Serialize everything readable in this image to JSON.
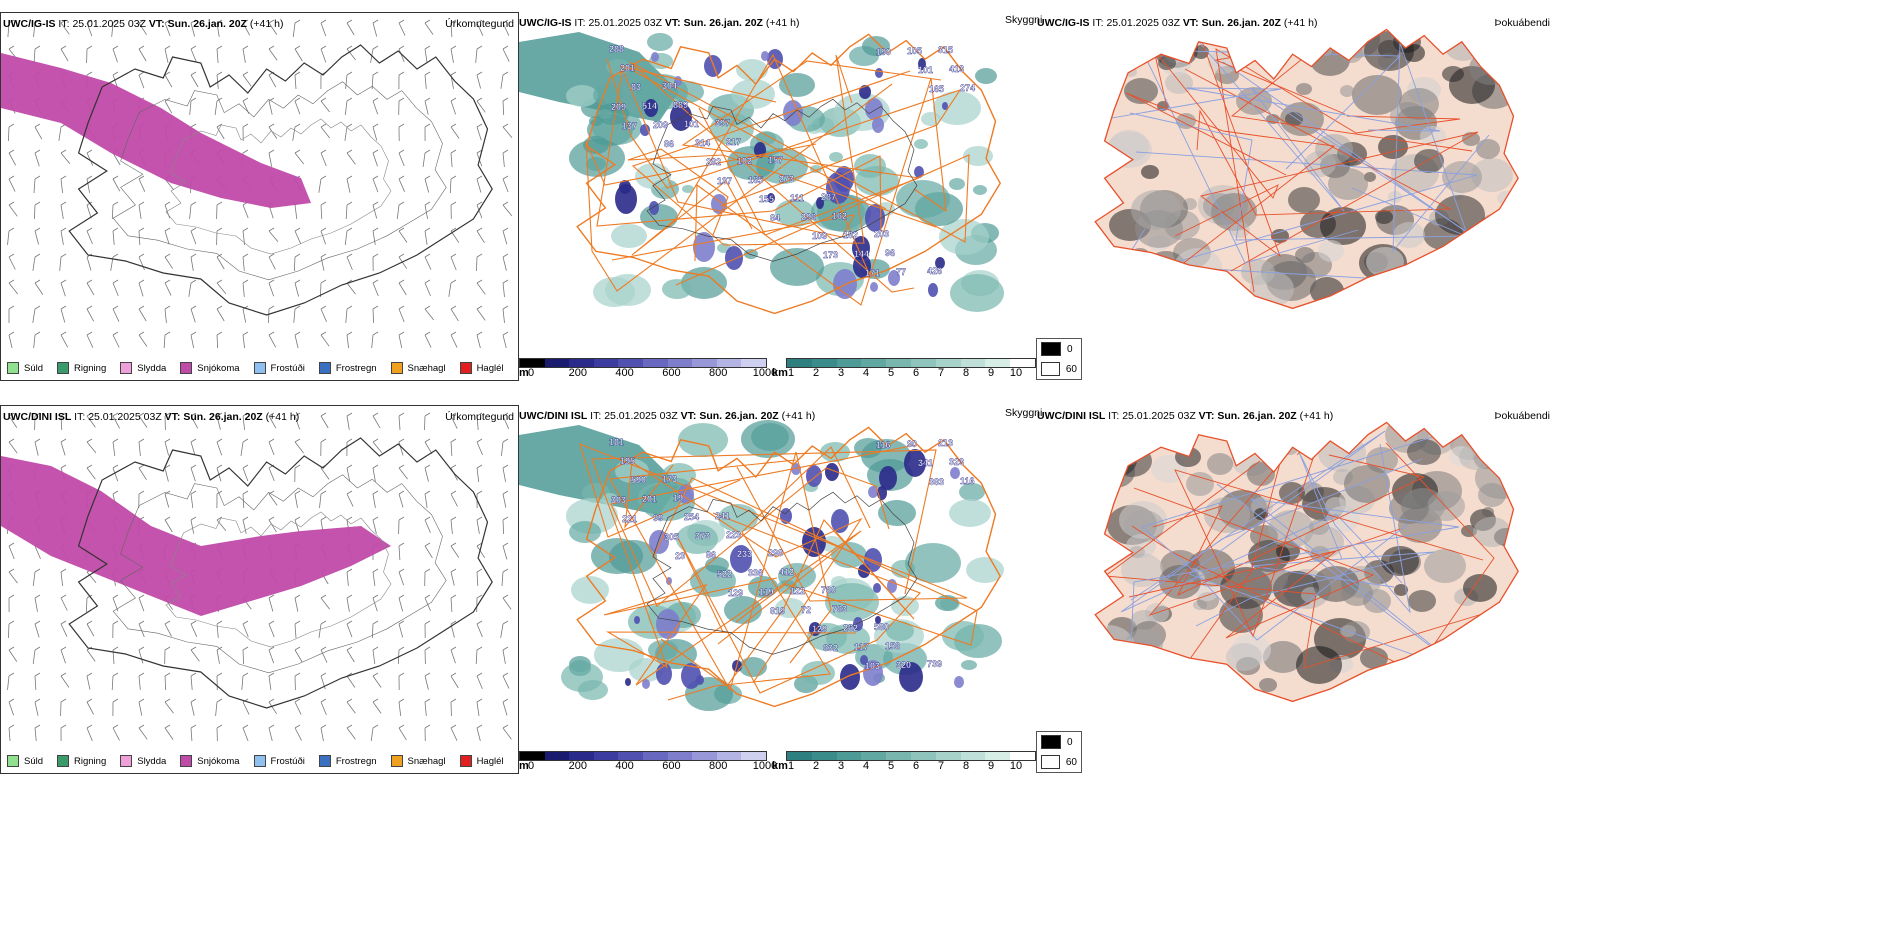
{
  "rows": [
    {
      "model": "UWC/IG-IS",
      "it_label": "IT:",
      "it_value": "25.01.2025 03Z",
      "vt_label": "VT:",
      "vt_value": "Sun. 26.jan. 20Z",
      "lead": "(+41 h)",
      "precip_title": "Úrkomutegund",
      "vis_title": "Skyggni",
      "fog_title": "Þokuábendi",
      "labels_a": [
        "288",
        "304",
        "397",
        "157",
        "287",
        "203",
        "426",
        "201",
        "889",
        "217",
        "273",
        "162",
        "96",
        "315",
        "83",
        "101",
        "102",
        "111",
        "182",
        "77",
        "413",
        "514",
        "314",
        "165",
        "296",
        "144",
        "105",
        "274",
        "209",
        "282",
        "155",
        "109",
        "171",
        "101",
        "209",
        "86",
        "137",
        "84",
        "173",
        "190",
        "165",
        "137"
      ],
      "labels_b": []
    },
    {
      "model": "UWC/DINI ISL",
      "it_label": "IT:",
      "it_value": "25.01.2025 03Z",
      "vt_label": "VT:",
      "vt_value": "Sun. 26.jan. 20Z",
      "lead": "(+41 h)",
      "precip_title": "Úrkomutegund",
      "vis_title": "Skyggni",
      "fog_title": "Þokuábendi",
      "labels_a": [
        "181",
        "173",
        "241",
        "298",
        "760",
        "580",
        "739",
        "195",
        "19",
        "223",
        "412",
        "763",
        "156",
        "213",
        "590",
        "254",
        "233",
        "122",
        "262",
        "320",
        "323",
        "201",
        "373",
        "336",
        "72",
        "117",
        "90",
        "116",
        "99",
        "86",
        "119",
        "129",
        "103",
        "341",
        "303",
        "305",
        "522",
        "819",
        "632",
        "116",
        "383",
        "221",
        "23",
        "129"
      ],
      "labels_b": []
    }
  ],
  "precip_legend": [
    {
      "label": "Súld",
      "color": "#90e090"
    },
    {
      "label": "Rigning",
      "color": "#3a9a6a"
    },
    {
      "label": "Slydda",
      "color": "#f0a0d8"
    },
    {
      "label": "Snjókoma",
      "color": "#c04aa8"
    },
    {
      "label": "Frostúði",
      "color": "#90c0f0"
    },
    {
      "label": "Frostregn",
      "color": "#3a70c0"
    },
    {
      "label": "Snæhagl",
      "color": "#f0a020"
    },
    {
      "label": "Haglél",
      "color": "#e02020"
    }
  ],
  "cloud_colorbar": {
    "unit": "m",
    "ticks": [
      "0",
      "200",
      "400",
      "600",
      "800",
      "1000"
    ],
    "colors": [
      "#000000",
      "#1a1a6e",
      "#2a2a8a",
      "#3c3ca0",
      "#5050b0",
      "#6868c0",
      "#7e7ecc",
      "#9898d8",
      "#b4b4e4",
      "#cfcff0"
    ]
  },
  "vis_colorbar": {
    "unit": "km",
    "ticks": [
      "1",
      "2",
      "3",
      "4",
      "5",
      "6",
      "7",
      "8",
      "9",
      "10"
    ],
    "colors": [
      "#2e8080",
      "#3a8c8a",
      "#4e9a96",
      "#62a8a2",
      "#78b6ae",
      "#8ec4bc",
      "#a6d2ca",
      "#bee0d8",
      "#d6eee6",
      "#ffffff"
    ]
  },
  "fog_legend": [
    {
      "label": "0",
      "color": "#000000"
    },
    {
      "label": "60",
      "color": "#ffffff"
    }
  ]
}
